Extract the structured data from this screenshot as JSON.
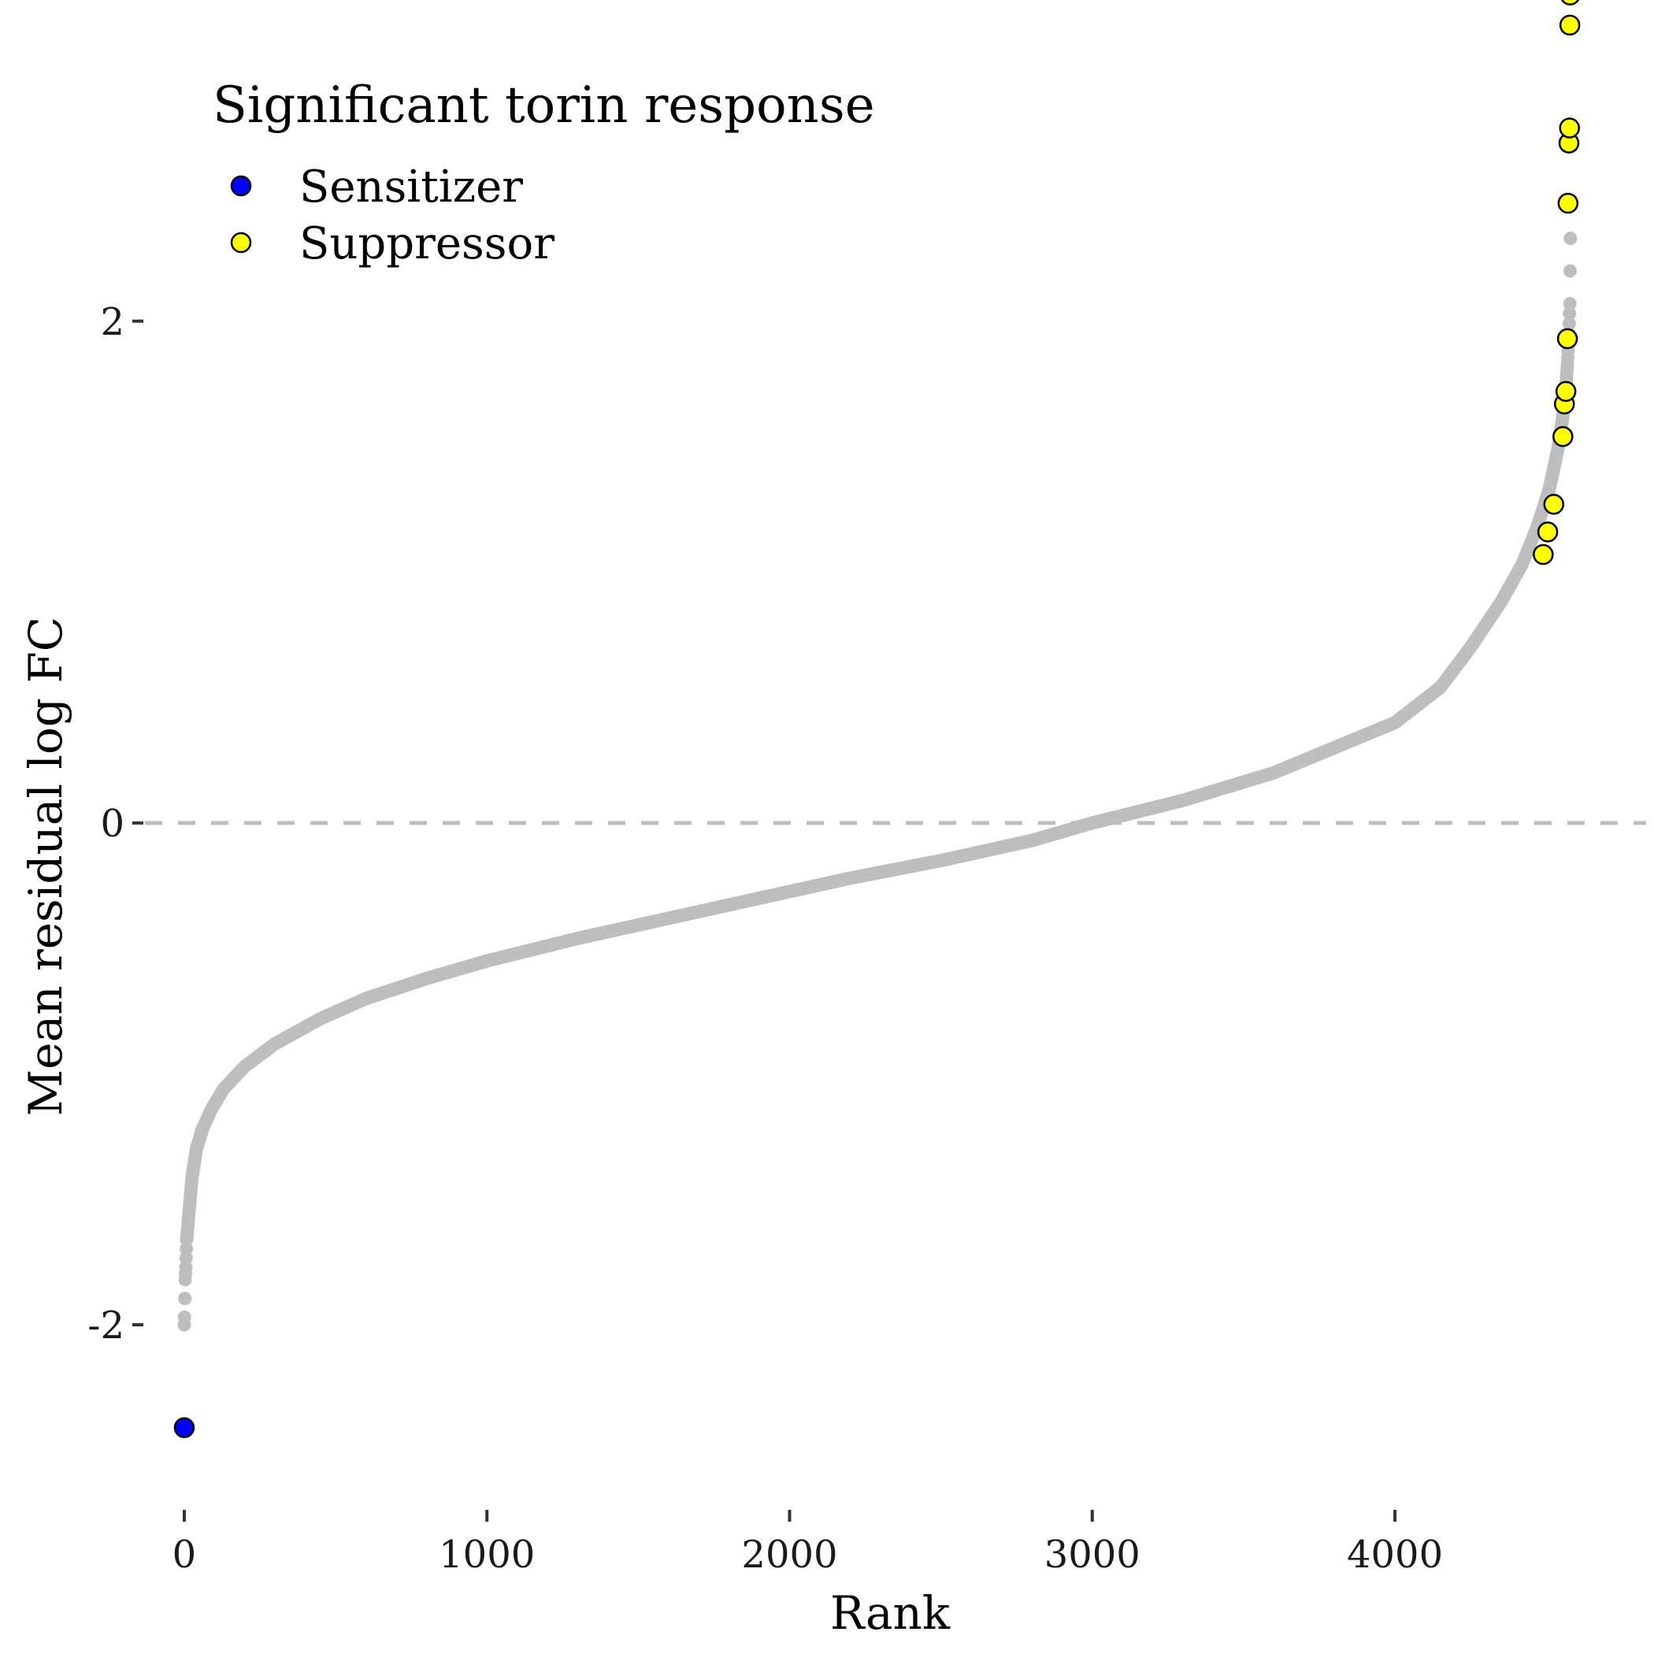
{
  "chart_data": {
    "type": "scatter",
    "xlabel": "Rank",
    "ylabel": "Mean residual log FC",
    "xlim": [
      -130,
      4830
    ],
    "ylim": [
      -2.7,
      3.28
    ],
    "x_ticks": [
      0,
      1000,
      2000,
      3000,
      4000
    ],
    "x_tick_labels": [
      "0",
      "1000",
      "2000",
      "3000",
      "4000"
    ],
    "y_ticks": [
      -2,
      0,
      2
    ],
    "y_tick_labels": [
      "-2",
      "0",
      "2"
    ],
    "grid": false,
    "reference_line": {
      "y": 0,
      "style": "dashed",
      "color": "#BEBEBE"
    },
    "background_color": "#BEBEBE",
    "n_points": 4580,
    "background_curve_knots": [
      [
        0,
        -2.0
      ],
      [
        1,
        -1.97
      ],
      [
        3,
        -1.82
      ],
      [
        5,
        -1.77
      ],
      [
        8,
        -1.66
      ],
      [
        15,
        -1.56
      ],
      [
        25,
        -1.42
      ],
      [
        40,
        -1.3
      ],
      [
        60,
        -1.22
      ],
      [
        90,
        -1.14
      ],
      [
        130,
        -1.06
      ],
      [
        200,
        -0.97
      ],
      [
        300,
        -0.88
      ],
      [
        450,
        -0.78
      ],
      [
        600,
        -0.7
      ],
      [
        800,
        -0.62
      ],
      [
        1000,
        -0.55
      ],
      [
        1300,
        -0.46
      ],
      [
        1600,
        -0.38
      ],
      [
        1900,
        -0.3
      ],
      [
        2200,
        -0.22
      ],
      [
        2500,
        -0.15
      ],
      [
        2800,
        -0.07
      ],
      [
        3000,
        0.0
      ],
      [
        3300,
        0.09
      ],
      [
        3600,
        0.2
      ],
      [
        3800,
        0.3
      ],
      [
        4000,
        0.4
      ],
      [
        4150,
        0.54
      ],
      [
        4250,
        0.7
      ],
      [
        4350,
        0.88
      ],
      [
        4420,
        1.03
      ],
      [
        4470,
        1.18
      ],
      [
        4510,
        1.33
      ],
      [
        4540,
        1.5
      ],
      [
        4555,
        1.62
      ],
      [
        4565,
        1.74
      ],
      [
        4570,
        1.83
      ],
      [
        4575,
        1.95
      ],
      [
        4578,
        2.07
      ],
      [
        4580,
        2.33
      ]
    ],
    "legend": {
      "title": "Significant torin response",
      "placement": "top-left",
      "entries": [
        {
          "label": "Sensitizer",
          "color": "#0000FF"
        },
        {
          "label": "Suppressor",
          "color": "#FFFF00"
        }
      ]
    },
    "series": [
      {
        "name": "Sensitizer",
        "color": "#0000FF",
        "points": [
          {
            "x": 0,
            "y": -2.41
          }
        ]
      },
      {
        "name": "Suppressor",
        "color": "#FFFF00",
        "points": [
          {
            "x": 4490,
            "y": 1.07
          },
          {
            "x": 4505,
            "y": 1.16
          },
          {
            "x": 4525,
            "y": 1.27
          },
          {
            "x": 4555,
            "y": 1.54
          },
          {
            "x": 4560,
            "y": 1.67
          },
          {
            "x": 4565,
            "y": 1.72
          },
          {
            "x": 4570,
            "y": 1.93
          },
          {
            "x": 4572,
            "y": 2.47
          },
          {
            "x": 4575,
            "y": 2.71
          },
          {
            "x": 4577,
            "y": 2.77
          },
          {
            "x": 4578,
            "y": 3.18
          },
          {
            "x": 4579,
            "y": 3.3
          }
        ]
      }
    ]
  }
}
